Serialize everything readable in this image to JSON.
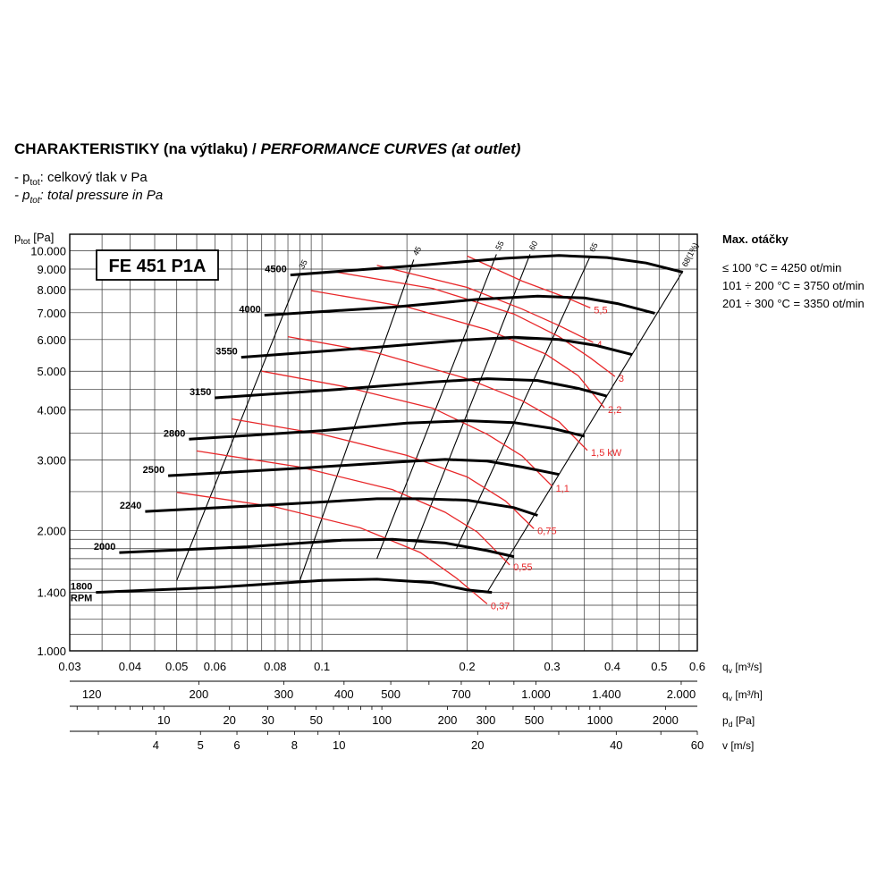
{
  "header": {
    "title_plain": "CHARAKTERISTIKY (na výtlaku) / ",
    "title_italic": "PERFORMANCE CURVES (at outlet)",
    "legend": [
      {
        "prefix": "- p",
        "sub": "tot",
        "text": ": celkový tlak v Pa",
        "italic": false
      },
      {
        "prefix": "- p",
        "sub": "tot",
        "text": ": total pressure in Pa",
        "italic": true
      }
    ]
  },
  "max_speed": {
    "heading": "Max. otáčky",
    "lines": [
      "≤ 100 °C = 4250 ot/min",
      "101 ÷ 200 °C = 3750 ot/min",
      "201 ÷ 300 °C = 3350 ot/min"
    ]
  },
  "chart_data": {
    "type": "line",
    "model_label": "FE 451 P1A",
    "y_axis": {
      "label_main": "p",
      "label_sub": "tot",
      "label_unit": " [Pa]",
      "scale": "log",
      "range": [
        1000,
        11000
      ],
      "ticks": [
        {
          "v": 1000,
          "t": "1.000"
        },
        {
          "v": 1400,
          "t": "1.400"
        },
        {
          "v": 2000,
          "t": "2.000"
        },
        {
          "v": 3000,
          "t": "3.000"
        },
        {
          "v": 4000,
          "t": "4.000"
        },
        {
          "v": 5000,
          "t": "5.000"
        },
        {
          "v": 6000,
          "t": "6.000"
        },
        {
          "v": 7000,
          "t": "7.000"
        },
        {
          "v": 8000,
          "t": "8.000"
        },
        {
          "v": 9000,
          "t": "9.000"
        },
        {
          "v": 10000,
          "t": "10.000"
        }
      ]
    },
    "x_axes": [
      {
        "label_main": "q",
        "label_sub": "v",
        "label_unit": " [m³/s]",
        "scale": "log",
        "range": [
          0.03,
          0.6
        ],
        "ticks": [
          {
            "v": 0.03,
            "t": "0.03"
          },
          {
            "v": 0.04,
            "t": "0.04"
          },
          {
            "v": 0.05,
            "t": "0.05"
          },
          {
            "v": 0.06,
            "t": "0.06"
          },
          {
            "v": 0.08,
            "t": "0.08"
          },
          {
            "v": 0.1,
            "t": "0.1"
          },
          {
            "v": 0.2,
            "t": "0.2"
          },
          {
            "v": 0.3,
            "t": "0.3"
          },
          {
            "v": 0.4,
            "t": "0.4"
          },
          {
            "v": 0.5,
            "t": "0.5"
          },
          {
            "v": 0.6,
            "t": "0.6"
          }
        ]
      },
      {
        "label_main": "q",
        "label_sub": "v",
        "label_unit": " [m³/h]",
        "scale": "log",
        "range": [
          108,
          2160
        ],
        "ticks": [
          {
            "v": 120,
            "t": "120"
          },
          {
            "v": 200,
            "t": "200"
          },
          {
            "v": 300,
            "t": "300"
          },
          {
            "v": 400,
            "t": "400"
          },
          {
            "v": 500,
            "t": "500"
          },
          {
            "v": 700,
            "t": "700"
          },
          {
            "v": 1000,
            "t": "1.000"
          },
          {
            "v": 1400,
            "t": "1.400"
          },
          {
            "v": 2000,
            "t": "2.000"
          }
        ]
      },
      {
        "label_main": "p",
        "label_sub": "d",
        "label_unit": " [Pa]",
        "scale": "log",
        "range": [
          3.7,
          2800
        ],
        "ticks": [
          {
            "v": 10,
            "t": "10"
          },
          {
            "v": 20,
            "t": "20"
          },
          {
            "v": 30,
            "t": "30"
          },
          {
            "v": 50,
            "t": "50"
          },
          {
            "v": 100,
            "t": "100"
          },
          {
            "v": 200,
            "t": "200"
          },
          {
            "v": 300,
            "t": "300"
          },
          {
            "v": 500,
            "t": "500"
          },
          {
            "v": 1000,
            "t": "1000"
          },
          {
            "v": 2000,
            "t": "2000"
          }
        ]
      },
      {
        "label_main": "v",
        "label_sub": "",
        "label_unit": " [m/s]",
        "scale": "log",
        "range": [
          2.6,
          60
        ],
        "ticks": [
          {
            "v": 4,
            "t": "4"
          },
          {
            "v": 5,
            "t": "5"
          },
          {
            "v": 6,
            "t": "6"
          },
          {
            "v": 8,
            "t": "8"
          },
          {
            "v": 10,
            "t": "10"
          },
          {
            "v": 20,
            "t": "20"
          },
          {
            "v": 40,
            "t": "40"
          },
          {
            "v": 60,
            "t": "60"
          }
        ]
      }
    ],
    "speed_curves": [
      {
        "name": "1800",
        "unit": "RPM",
        "points": [
          [
            0.034,
            1400
          ],
          [
            0.06,
            1440
          ],
          [
            0.1,
            1500
          ],
          [
            0.13,
            1510
          ],
          [
            0.17,
            1480
          ],
          [
            0.2,
            1420
          ],
          [
            0.225,
            1400
          ]
        ]
      },
      {
        "name": "2000",
        "points": [
          [
            0.038,
            1760
          ],
          [
            0.07,
            1820
          ],
          [
            0.11,
            1890
          ],
          [
            0.14,
            1900
          ],
          [
            0.18,
            1860
          ],
          [
            0.22,
            1780
          ],
          [
            0.25,
            1720
          ]
        ]
      },
      {
        "name": "2240",
        "points": [
          [
            0.043,
            2230
          ],
          [
            0.08,
            2320
          ],
          [
            0.13,
            2400
          ],
          [
            0.16,
            2400
          ],
          [
            0.2,
            2380
          ],
          [
            0.25,
            2280
          ],
          [
            0.28,
            2180
          ]
        ]
      },
      {
        "name": "2500",
        "points": [
          [
            0.048,
            2740
          ],
          [
            0.09,
            2860
          ],
          [
            0.14,
            2960
          ],
          [
            0.18,
            3010
          ],
          [
            0.22,
            2980
          ],
          [
            0.26,
            2880
          ],
          [
            0.31,
            2760
          ]
        ]
      },
      {
        "name": "2800",
        "points": [
          [
            0.053,
            3380
          ],
          [
            0.1,
            3550
          ],
          [
            0.15,
            3710
          ],
          [
            0.2,
            3760
          ],
          [
            0.25,
            3720
          ],
          [
            0.3,
            3600
          ],
          [
            0.35,
            3440
          ]
        ]
      },
      {
        "name": "3150",
        "points": [
          [
            0.06,
            4290
          ],
          [
            0.11,
            4510
          ],
          [
            0.17,
            4700
          ],
          [
            0.22,
            4790
          ],
          [
            0.28,
            4740
          ],
          [
            0.34,
            4530
          ],
          [
            0.39,
            4330
          ]
        ]
      },
      {
        "name": "3550",
        "points": [
          [
            0.068,
            5420
          ],
          [
            0.13,
            5740
          ],
          [
            0.2,
            5990
          ],
          [
            0.25,
            6080
          ],
          [
            0.31,
            6000
          ],
          [
            0.37,
            5800
          ],
          [
            0.44,
            5500
          ]
        ]
      },
      {
        "name": "4000",
        "points": [
          [
            0.076,
            6900
          ],
          [
            0.14,
            7230
          ],
          [
            0.21,
            7560
          ],
          [
            0.28,
            7700
          ],
          [
            0.35,
            7620
          ],
          [
            0.41,
            7380
          ],
          [
            0.49,
            6980
          ]
        ]
      },
      {
        "name": "4500",
        "points": [
          [
            0.086,
            8700
          ],
          [
            0.16,
            9200
          ],
          [
            0.24,
            9580
          ],
          [
            0.31,
            9730
          ],
          [
            0.39,
            9620
          ],
          [
            0.47,
            9320
          ],
          [
            0.56,
            8840
          ]
        ]
      }
    ],
    "power_curves": [
      {
        "name": "0,37",
        "points": [
          [
            0.05,
            2490
          ],
          [
            0.08,
            2290
          ],
          [
            0.12,
            2030
          ],
          [
            0.16,
            1760
          ],
          [
            0.19,
            1520
          ],
          [
            0.22,
            1310
          ]
        ]
      },
      {
        "name": "0,55",
        "points": [
          [
            0.055,
            3160
          ],
          [
            0.09,
            2880
          ],
          [
            0.14,
            2530
          ],
          [
            0.18,
            2220
          ],
          [
            0.21,
            1980
          ],
          [
            0.245,
            1640
          ]
        ]
      },
      {
        "name": "0,75",
        "points": [
          [
            0.065,
            3800
          ],
          [
            0.1,
            3480
          ],
          [
            0.15,
            3080
          ],
          [
            0.2,
            2720
          ],
          [
            0.24,
            2370
          ],
          [
            0.275,
            2020
          ]
        ]
      },
      {
        "name": "1,1",
        "points": [
          [
            0.075,
            5000
          ],
          [
            0.11,
            4590
          ],
          [
            0.17,
            4040
          ],
          [
            0.22,
            3480
          ],
          [
            0.26,
            3070
          ],
          [
            0.3,
            2580
          ]
        ]
      },
      {
        "name": "1,5 kW",
        "points": [
          [
            0.085,
            6100
          ],
          [
            0.13,
            5560
          ],
          [
            0.2,
            4790
          ],
          [
            0.26,
            4220
          ],
          [
            0.31,
            3740
          ],
          [
            0.355,
            3170
          ]
        ]
      },
      {
        "name": "2,2",
        "points": [
          [
            0.095,
            7950
          ],
          [
            0.15,
            7240
          ],
          [
            0.22,
            6350
          ],
          [
            0.29,
            5530
          ],
          [
            0.34,
            4870
          ],
          [
            0.385,
            4050
          ]
        ]
      },
      {
        "name": "3",
        "points": [
          [
            0.105,
            8880
          ],
          [
            0.17,
            8050
          ],
          [
            0.25,
            6950
          ],
          [
            0.31,
            6100
          ],
          [
            0.36,
            5400
          ],
          [
            0.405,
            4850
          ]
        ]
      },
      {
        "name": "4",
        "points": [
          [
            0.13,
            9200
          ],
          [
            0.2,
            8100
          ],
          [
            0.26,
            7150
          ],
          [
            0.31,
            6500
          ],
          [
            0.365,
            5900
          ]
        ]
      },
      {
        "name": "5,5",
        "points": [
          [
            0.2,
            9700
          ],
          [
            0.26,
            8400
          ],
          [
            0.32,
            7650
          ],
          [
            0.36,
            7200
          ]
        ]
      }
    ],
    "efficiency_lines": [
      {
        "name": "35",
        "from": [
          0.05,
          1500
        ],
        "to": [
          0.09,
          8800
        ]
      },
      {
        "name": "45",
        "from": [
          0.09,
          1500
        ],
        "to": [
          0.155,
          9500
        ]
      },
      {
        "name": "55",
        "from": [
          0.13,
          1700
        ],
        "to": [
          0.23,
          9800
        ]
      },
      {
        "name": "60",
        "from": [
          0.155,
          1800
        ],
        "to": [
          0.27,
          9800
        ]
      },
      {
        "name": "65",
        "from": [
          0.19,
          1800
        ],
        "to": [
          0.36,
          9700
        ]
      },
      {
        "name": "68(1%)",
        "from": [
          0.22,
          1400
        ],
        "to": [
          0.56,
          8900
        ]
      }
    ]
  }
}
